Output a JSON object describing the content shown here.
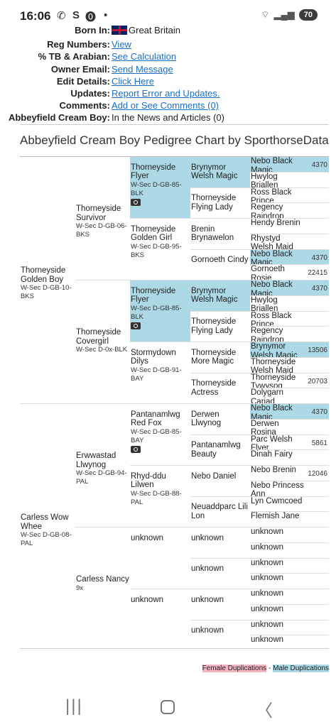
{
  "status": {
    "time": "16:06",
    "icons_left": [
      "©",
      "S",
      "⓿",
      "•"
    ],
    "battery": "70"
  },
  "info": {
    "born_label": "Born In:",
    "born_value": "Great Britain",
    "reg_label": "Reg Numbers:",
    "reg_value": "View",
    "tb_label": "% TB & Arabian:",
    "tb_value": "See Calculation",
    "owner_label": "Owner Email:",
    "owner_value": "Send Message",
    "edit_label": "Edit Details:",
    "edit_value": "Click Here",
    "updates_label": "Updates:",
    "updates_value": "Report Error and Updates.",
    "comments_label": "Comments:",
    "comments_value": "Add or See Comments (0)",
    "news_label": "Abbeyfield Cream Boy:",
    "news_value": "In the News and Articles (0)"
  },
  "title": "Abbeyfield Cream Boy Pedigree Chart by SporthorseData",
  "pedigree": {
    "g1": [
      {
        "name": "Thorneyside Golden Boy",
        "reg": "W-Sec D-GB-10-BKS"
      },
      {
        "name": "Carless Wow Whee",
        "reg": "W-Sec D-GB-08-PAL"
      }
    ],
    "g2": [
      {
        "name": "Thorneyside Survivor",
        "reg": "W-Sec D-GB-06-BKS"
      },
      {
        "name": "Thorneyside Covergirl",
        "reg": "W-Sec D-0x-BLK"
      },
      {
        "name": "Erwwastad Llwynog",
        "reg": "W-Sec D-GB-94-PAL"
      },
      {
        "name": "Carless Nancy",
        "reg": "9x"
      }
    ],
    "g3": [
      {
        "name": "Thorneyside Flyer",
        "reg": "W-Sec D-GB-85-BLK"
      },
      {
        "name": "Thorneyside Golden Girl",
        "reg": "W-Sec D-GB-95-BKS"
      },
      {
        "name": "Thorneyside Flyer",
        "reg": "W-Sec D-GB-85-BLK"
      },
      {
        "name": "Stormydown Dilys",
        "reg": "W-Sec D-GB-91-BAY"
      },
      {
        "name": "Pantanamlwg Red Fox",
        "reg": "W-Sec D-GB-85-BAY"
      },
      {
        "name": "Rhyd-ddu Lilwen",
        "reg": "W-Sec D-GB-88-PAL"
      },
      {
        "name": "unknown",
        "reg": ""
      },
      {
        "name": "unknown",
        "reg": ""
      }
    ],
    "g4": [
      "Brynymor Welsh Magic",
      "Thorneyside Flying Lady",
      "Brenin Brynawelon",
      "Gornoeth Cindy",
      "Brynymor Welsh Magic",
      "Thorneyside Flying Lady",
      "Thorneyside More Magic",
      "Thorneyside Actress",
      "Derwen Llwynog",
      "Pantanamlwg Beauty",
      "Nebo Daniel",
      "Neuaddparc Lili Lon",
      "unknown",
      "unknown",
      "unknown",
      "unknown"
    ],
    "g5": [
      {
        "name": "Nebo Black Magic",
        "num": "4370"
      },
      {
        "name": "Hwylog Briallen",
        "num": ""
      },
      {
        "name": "Ross Black Prince",
        "num": ""
      },
      {
        "name": "Regency Raindrop",
        "num": ""
      },
      {
        "name": "Hendy Brenin",
        "num": ""
      },
      {
        "name": "Rhystyd Welsh Maid",
        "num": ""
      },
      {
        "name": "Nebo Black Magic",
        "num": "4370"
      },
      {
        "name": "Gornoeth Rosie",
        "num": "22415"
      },
      {
        "name": "Nebo Black Magic",
        "num": "4370"
      },
      {
        "name": "Hwylog Briallen",
        "num": ""
      },
      {
        "name": "Ross Black Prince",
        "num": ""
      },
      {
        "name": "Regency Raindrop",
        "num": ""
      },
      {
        "name": "Brynymor Welsh Magic",
        "num": "13506"
      },
      {
        "name": "Thorneyside Welsh Maid",
        "num": ""
      },
      {
        "name": "Thorneyside Tywysog",
        "num": "20703"
      },
      {
        "name": "Dolygarn Cariad",
        "num": ""
      },
      {
        "name": "Nebo Black Magic",
        "num": "4370"
      },
      {
        "name": "Derwen Rosina",
        "num": ""
      },
      {
        "name": "Parc Welsh Flyer",
        "num": "5861"
      },
      {
        "name": "Dinah Fairy",
        "num": ""
      },
      {
        "name": "Nebo Brenin",
        "num": "12046"
      },
      {
        "name": "Nebo Princess Ann",
        "num": ""
      },
      {
        "name": "Lyn Cwmcoed",
        "num": ""
      },
      {
        "name": "Flemish Jane",
        "num": ""
      },
      {
        "name": "unknown",
        "num": ""
      },
      {
        "name": "unknown",
        "num": ""
      },
      {
        "name": "unknown",
        "num": ""
      },
      {
        "name": "unknown",
        "num": ""
      },
      {
        "name": "unknown",
        "num": ""
      },
      {
        "name": "unknown",
        "num": ""
      },
      {
        "name": "unknown",
        "num": ""
      },
      {
        "name": "unknown",
        "num": ""
      }
    ]
  },
  "legend": {
    "female": "Female Duplications",
    "sep": " - ",
    "male": "Male Duplications"
  },
  "colors": {
    "male_dup": "#add8e6",
    "female_dup": "#f4b6c2",
    "link": "#1a6fc4"
  }
}
